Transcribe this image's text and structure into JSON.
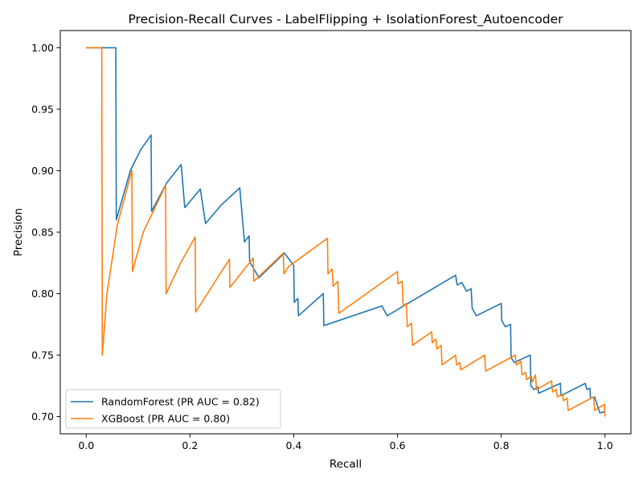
{
  "chart_data": {
    "type": "line",
    "title": "Precision-Recall Curves - LabelFlipping + IsolationForest_Autoencoder",
    "xlabel": "Recall",
    "ylabel": "Precision",
    "xlim": [
      -0.05,
      1.05
    ],
    "ylim": [
      0.686,
      1.014
    ],
    "x_ticks": [
      "0.0",
      "0.2",
      "0.4",
      "0.6",
      "0.8",
      "1.0"
    ],
    "x_tick_values": [
      0.0,
      0.2,
      0.4,
      0.6,
      0.8,
      1.0
    ],
    "y_ticks": [
      "0.70",
      "0.75",
      "0.80",
      "0.85",
      "0.90",
      "0.95",
      "1.00"
    ],
    "y_tick_values": [
      0.7,
      0.75,
      0.8,
      0.85,
      0.9,
      0.95,
      1.0
    ],
    "grid": false,
    "legend_position": "lower-left",
    "series": [
      {
        "name": "RandomForest (PR AUC = 0.82)",
        "color": "#1f77b4",
        "points": [
          [
            0.0,
            1.0
          ],
          [
            0.057,
            1.0
          ],
          [
            0.058,
            0.86
          ],
          [
            0.085,
            0.9
          ],
          [
            0.105,
            0.917
          ],
          [
            0.125,
            0.929
          ],
          [
            0.126,
            0.867
          ],
          [
            0.155,
            0.89
          ],
          [
            0.183,
            0.905
          ],
          [
            0.19,
            0.87
          ],
          [
            0.22,
            0.885
          ],
          [
            0.23,
            0.857
          ],
          [
            0.26,
            0.872
          ],
          [
            0.296,
            0.886
          ],
          [
            0.305,
            0.842
          ],
          [
            0.314,
            0.847
          ],
          [
            0.315,
            0.826
          ],
          [
            0.333,
            0.813
          ],
          [
            0.382,
            0.833
          ],
          [
            0.4,
            0.823
          ],
          [
            0.401,
            0.793
          ],
          [
            0.408,
            0.796
          ],
          [
            0.409,
            0.782
          ],
          [
            0.457,
            0.8
          ],
          [
            0.458,
            0.774
          ],
          [
            0.57,
            0.79
          ],
          [
            0.58,
            0.782
          ],
          [
            0.712,
            0.815
          ],
          [
            0.715,
            0.807
          ],
          [
            0.724,
            0.809
          ],
          [
            0.733,
            0.802
          ],
          [
            0.742,
            0.804
          ],
          [
            0.744,
            0.788
          ],
          [
            0.752,
            0.782
          ],
          [
            0.8,
            0.792
          ],
          [
            0.801,
            0.778
          ],
          [
            0.808,
            0.773
          ],
          [
            0.818,
            0.775
          ],
          [
            0.819,
            0.748
          ],
          [
            0.825,
            0.744
          ],
          [
            0.856,
            0.75
          ],
          [
            0.857,
            0.725
          ],
          [
            0.863,
            0.722
          ],
          [
            0.871,
            0.724
          ],
          [
            0.872,
            0.719
          ],
          [
            0.914,
            0.727
          ],
          [
            0.915,
            0.717
          ],
          [
            0.962,
            0.727
          ],
          [
            0.965,
            0.722
          ],
          [
            0.971,
            0.723
          ],
          [
            0.972,
            0.715
          ],
          [
            0.98,
            0.716
          ],
          [
            0.99,
            0.703
          ],
          [
            1.0,
            0.704
          ]
        ]
      },
      {
        "name": "XGBoost (PR AUC = 0.80)",
        "color": "#ff7f0e",
        "points": [
          [
            0.0,
            1.0
          ],
          [
            0.03,
            1.0
          ],
          [
            0.031,
            0.75
          ],
          [
            0.04,
            0.8
          ],
          [
            0.06,
            0.856
          ],
          [
            0.088,
            0.9
          ],
          [
            0.089,
            0.818
          ],
          [
            0.11,
            0.85
          ],
          [
            0.153,
            0.888
          ],
          [
            0.154,
            0.8
          ],
          [
            0.182,
            0.825
          ],
          [
            0.21,
            0.846
          ],
          [
            0.211,
            0.785
          ],
          [
            0.276,
            0.828
          ],
          [
            0.277,
            0.805
          ],
          [
            0.322,
            0.829
          ],
          [
            0.323,
            0.81
          ],
          [
            0.38,
            0.833
          ],
          [
            0.381,
            0.816
          ],
          [
            0.39,
            0.822
          ],
          [
            0.465,
            0.845
          ],
          [
            0.466,
            0.816
          ],
          [
            0.474,
            0.82
          ],
          [
            0.476,
            0.806
          ],
          [
            0.485,
            0.81
          ],
          [
            0.487,
            0.784
          ],
          [
            0.6,
            0.818
          ],
          [
            0.601,
            0.808
          ],
          [
            0.609,
            0.81
          ],
          [
            0.611,
            0.79
          ],
          [
            0.617,
            0.792
          ],
          [
            0.619,
            0.773
          ],
          [
            0.627,
            0.776
          ],
          [
            0.629,
            0.758
          ],
          [
            0.666,
            0.769
          ],
          [
            0.667,
            0.76
          ],
          [
            0.674,
            0.763
          ],
          [
            0.676,
            0.755
          ],
          [
            0.684,
            0.758
          ],
          [
            0.686,
            0.742
          ],
          [
            0.712,
            0.75
          ],
          [
            0.714,
            0.742
          ],
          [
            0.72,
            0.744
          ],
          [
            0.722,
            0.738
          ],
          [
            0.768,
            0.75
          ],
          [
            0.77,
            0.737
          ],
          [
            0.827,
            0.75
          ],
          [
            0.829,
            0.742
          ],
          [
            0.838,
            0.745
          ],
          [
            0.84,
            0.734
          ],
          [
            0.847,
            0.736
          ],
          [
            0.849,
            0.73
          ],
          [
            0.858,
            0.733
          ],
          [
            0.86,
            0.728
          ],
          [
            0.866,
            0.734
          ],
          [
            0.868,
            0.722
          ],
          [
            0.897,
            0.729
          ],
          [
            0.899,
            0.72
          ],
          [
            0.906,
            0.722
          ],
          [
            0.908,
            0.716
          ],
          [
            0.918,
            0.718
          ],
          [
            0.92,
            0.713
          ],
          [
            0.927,
            0.715
          ],
          [
            0.929,
            0.705
          ],
          [
            0.978,
            0.716
          ],
          [
            0.98,
            0.705
          ],
          [
            0.999,
            0.71
          ],
          [
            1.0,
            0.7
          ]
        ]
      }
    ]
  }
}
